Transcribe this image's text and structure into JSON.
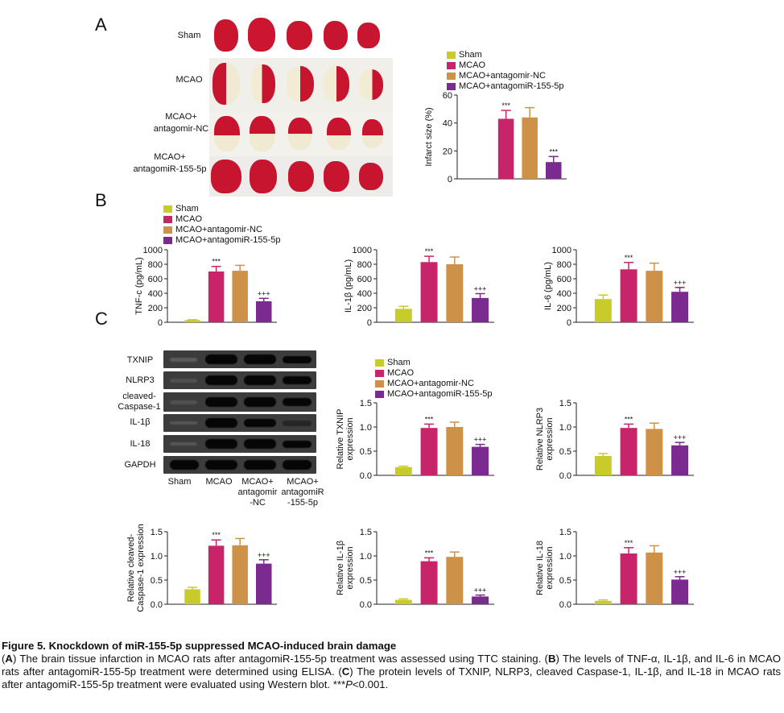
{
  "colors": {
    "sham": "#c8cc2a",
    "mcao": "#c8246a",
    "nc": "#cd9148",
    "anta": "#7b2a8f"
  },
  "panels": {
    "a": "A",
    "b": "B",
    "c": "C"
  },
  "ttc": {
    "rows": [
      "Sham",
      "MCAO",
      "MCAO+\nantagomir-NC",
      "MCAO+\nantagomiR-155-5p"
    ]
  },
  "legend": [
    "Sham",
    "MCAO",
    "MCAO+antagomir-NC",
    "MCAO+antagomiR-155-5p"
  ],
  "western": {
    "proteins": [
      "TXNIP",
      "NLRP3",
      "cleaved-\nCaspase-1",
      "IL-1β",
      "IL-18",
      "GAPDH"
    ],
    "lanes": [
      "Sham",
      "MCAO",
      "MCAO+\nantagomir\n-NC",
      "MCAO+\nantagomiR\n-155-5p"
    ]
  },
  "chart_data": [
    {
      "id": "infarct",
      "type": "bar",
      "categories": [
        "Sham",
        "MCAO",
        "MCAO+antagomir-NC",
        "MCAO+antagomiR-155-5p"
      ],
      "values": [
        0,
        43,
        44,
        12
      ],
      "errors": [
        0,
        6,
        7,
        4
      ],
      "stars": [
        "",
        "***",
        "",
        "***"
      ],
      "ylabel": "Infarct size (%)",
      "ylim": [
        0,
        60
      ],
      "ticks": [
        "0",
        "20",
        "40",
        "60"
      ]
    },
    {
      "id": "tnf",
      "type": "bar",
      "categories": [
        "Sham",
        "MCAO",
        "MCAO+antagomir-NC",
        "MCAO+antagomiR-155-5p"
      ],
      "values": [
        30,
        700,
        710,
        290
      ],
      "errors": [
        5,
        70,
        75,
        40
      ],
      "stars": [
        "",
        "***",
        "",
        "+++"
      ],
      "ylabel": "TNF-c (pg/mL)",
      "ylim": [
        0,
        1000
      ],
      "ticks": [
        "0",
        "200",
        "400",
        "600",
        "800",
        "1000"
      ]
    },
    {
      "id": "il1b",
      "type": "bar",
      "categories": [
        "Sham",
        "MCAO",
        "MCAO+antagomir-NC",
        "MCAO+antagomiR-155-5p"
      ],
      "values": [
        185,
        830,
        800,
        335
      ],
      "errors": [
        35,
        80,
        100,
        60
      ],
      "stars": [
        "",
        "***",
        "",
        "+++"
      ],
      "ylabel": "IL-1β (pg/mL)",
      "ylim": [
        0,
        1000
      ],
      "ticks": [
        "0",
        "200",
        "400",
        "600",
        "800",
        "1000"
      ]
    },
    {
      "id": "il6",
      "type": "bar",
      "categories": [
        "Sham",
        "MCAO",
        "MCAO+antagomir-NC",
        "MCAO+antagomiR-155-5p"
      ],
      "values": [
        320,
        730,
        710,
        420
      ],
      "errors": [
        55,
        95,
        105,
        60
      ],
      "stars": [
        "",
        "***",
        "",
        "+++"
      ],
      "ylabel": "IL-6 (pg/mL)",
      "ylim": [
        0,
        1000
      ],
      "ticks": [
        "0",
        "200",
        "400",
        "600",
        "800",
        "1000"
      ]
    },
    {
      "id": "txnip",
      "type": "bar",
      "categories": [
        "Sham",
        "MCAO",
        "MCAO+antagomir-NC",
        "MCAO+antagomiR-155-5p"
      ],
      "values": [
        0.17,
        0.98,
        1.0,
        0.59
      ],
      "errors": [
        0.02,
        0.08,
        0.1,
        0.05
      ],
      "stars": [
        "",
        "***",
        "",
        "+++"
      ],
      "ylabel": "Relative TXNIP\nexpression",
      "ylim": [
        0,
        1.5
      ],
      "ticks": [
        "0.0",
        "0.5",
        "1.0",
        "1.5"
      ]
    },
    {
      "id": "nlrp3",
      "type": "bar",
      "categories": [
        "Sham",
        "MCAO",
        "MCAO+antagomir-NC",
        "MCAO+antagomiR-155-5p"
      ],
      "values": [
        0.4,
        0.98,
        0.96,
        0.62
      ],
      "errors": [
        0.05,
        0.08,
        0.12,
        0.06
      ],
      "stars": [
        "",
        "***",
        "",
        "+++"
      ],
      "ylabel": "Relative NLRP3\nexpression",
      "ylim": [
        0,
        1.5
      ],
      "ticks": [
        "0.0",
        "0.5",
        "1.0",
        "1.5"
      ]
    },
    {
      "id": "casp1",
      "type": "bar",
      "categories": [
        "Sham",
        "MCAO",
        "MCAO+antagomir-NC",
        "MCAO+antagomiR-155-5p"
      ],
      "values": [
        0.31,
        1.21,
        1.22,
        0.84
      ],
      "errors": [
        0.04,
        0.12,
        0.14,
        0.08
      ],
      "stars": [
        "",
        "***",
        "",
        "+++"
      ],
      "ylabel": "Relative cleaved-\nCaspase-1 expression",
      "ylim": [
        0,
        1.5
      ],
      "ticks": [
        "0.0",
        "0.5",
        "1.0",
        "1.5"
      ]
    },
    {
      "id": "il1bwb",
      "type": "bar",
      "categories": [
        "Sham",
        "MCAO",
        "MCAO+antagomir-NC",
        "MCAO+antagomiR-155-5p"
      ],
      "values": [
        0.09,
        0.89,
        0.98,
        0.16
      ],
      "errors": [
        0.02,
        0.07,
        0.1,
        0.03
      ],
      "stars": [
        "",
        "***",
        "",
        "+++"
      ],
      "ylabel": "Relative IL-1β\nexpression",
      "ylim": [
        0,
        1.5
      ],
      "ticks": [
        "0.0",
        "0.5",
        "1.0",
        "1.5"
      ]
    },
    {
      "id": "il18",
      "type": "bar",
      "categories": [
        "Sham",
        "MCAO",
        "MCAO+antagomir-NC",
        "MCAO+antagomiR-155-5p"
      ],
      "values": [
        0.07,
        1.05,
        1.07,
        0.51
      ],
      "errors": [
        0.02,
        0.12,
        0.14,
        0.06
      ],
      "stars": [
        "",
        "***",
        "",
        "+++"
      ],
      "ylabel": "Relative IL-18\nexpression",
      "ylim": [
        0,
        1.5
      ],
      "ticks": [
        "0.0",
        "0.5",
        "1.0",
        "1.5"
      ]
    }
  ],
  "caption": {
    "title": "Figure 5. Knockdown of miR-155-5p suppressed MCAO-induced brain damage",
    "a_letter": "A",
    "a_text": ") The brain tissue infarction in MCAO rats after antagomiR-155-5p treatment was assessed using TTC staining. (",
    "b_letter": "B",
    "b_text": ") The levels of TNF-α, IL-1β, and IL-6 in MCAO rats after antagomiR-155-5p treatment were determined using ELISA. (",
    "c_letter": "C",
    "c_text": ") The protein levels of TXNIP, NLRP3, cleaved Caspase-1, IL-1β, and IL-18 in MCAO rats after antagomiR-155-5p treatment were evaluated using Western blot. ***",
    "p_italic": "P",
    "p_tail": "<0.001."
  }
}
